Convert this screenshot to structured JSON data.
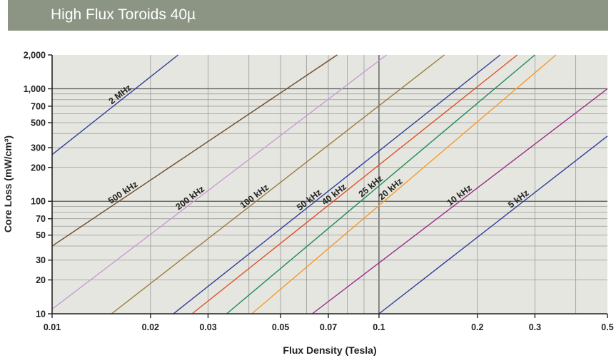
{
  "header": {
    "title": "High Flux Toroids 40µ"
  },
  "colors": {
    "banner": "#8c9484",
    "plot_bg": "#e6e6e0",
    "grid": "#999999"
  },
  "chart_data": {
    "type": "line",
    "title": "High Flux Toroids 40µ",
    "xlabel": "Flux Density (Tesla)",
    "ylabel": "Core Loss (mW/cm³)",
    "x_scale": "log",
    "y_scale": "log",
    "xlim": [
      0.01,
      0.5
    ],
    "ylim": [
      10,
      2000
    ],
    "x_ticks": [
      {
        "v": 0.01,
        "label": "0.01"
      },
      {
        "v": 0.02,
        "label": "0.02"
      },
      {
        "v": 0.03,
        "label": "0.03"
      },
      {
        "v": 0.05,
        "label": "0.05"
      },
      {
        "v": 0.07,
        "label": "0.07"
      },
      {
        "v": 0.1,
        "label": "0.1"
      },
      {
        "v": 0.2,
        "label": "0.2"
      },
      {
        "v": 0.3,
        "label": "0.3"
      },
      {
        "v": 0.5,
        "label": "0.5"
      }
    ],
    "y_ticks": [
      {
        "v": 10,
        "label": "10"
      },
      {
        "v": 20,
        "label": "20"
      },
      {
        "v": 30,
        "label": "30"
      },
      {
        "v": 50,
        "label": "50"
      },
      {
        "v": 70,
        "label": "70"
      },
      {
        "v": 100,
        "label": "100"
      },
      {
        "v": 200,
        "label": "200"
      },
      {
        "v": 300,
        "label": "300"
      },
      {
        "v": 500,
        "label": "500"
      },
      {
        "v": 700,
        "label": "700"
      },
      {
        "v": 1000,
        "label": "1,000"
      },
      {
        "v": 2000,
        "label": "2,000"
      }
    ],
    "x_grid": [
      0.02,
      0.03,
      0.04,
      0.05,
      0.06,
      0.07,
      0.08,
      0.09,
      0.1,
      0.2,
      0.3,
      0.4
    ],
    "y_grid": [
      20,
      30,
      40,
      50,
      60,
      70,
      80,
      90,
      100,
      200,
      300,
      400,
      500,
      600,
      700,
      800,
      900,
      1000
    ],
    "series": [
      {
        "name": "2 MHz",
        "color": "#2e3d9a",
        "x": [
          0.01,
          0.0243
        ],
        "y": [
          260,
          2000
        ],
        "label_at": 0.0165
      },
      {
        "name": "500 kHz",
        "color": "#6e4a2a",
        "x": [
          0.01,
          0.0745
        ],
        "y": [
          40,
          2000
        ],
        "label_at": 0.0168
      },
      {
        "name": "200 kHz",
        "color": "#c89ad8",
        "x": [
          0.01,
          0.1055
        ],
        "y": [
          11,
          2000
        ],
        "label_at": 0.027
      },
      {
        "name": "100 kHz",
        "color": "#9a7a3a",
        "x": [
          0.0152,
          0.1585
        ],
        "y": [
          10,
          2000
        ],
        "label_at": 0.0425
      },
      {
        "name": "50 kHz",
        "color": "#2e3d9a",
        "x": [
          0.0235,
          0.235
        ],
        "y": [
          10,
          2000
        ],
        "label_at": 0.0625
      },
      {
        "name": "40 kHz",
        "color": "#e0502a",
        "x": [
          0.0268,
          0.265
        ],
        "y": [
          10,
          2000
        ],
        "label_at": 0.0745
      },
      {
        "name": "25 kHz",
        "color": "#1e8a5a",
        "x": [
          0.0342,
          0.3
        ],
        "y": [
          10,
          2000
        ],
        "label_at": 0.0965
      },
      {
        "name": "20 kHz",
        "color": "#f59a2a",
        "x": [
          0.0408,
          0.348
        ],
        "y": [
          10,
          2000
        ],
        "label_at": 0.111
      },
      {
        "name": "10 kHz",
        "color": "#9a2a8a",
        "x": [
          0.0625,
          0.5
        ],
        "y": [
          10,
          1000
        ],
        "label_at": 0.18
      },
      {
        "name": "5 kHz",
        "color": "#2e3d9a",
        "x": [
          0.1,
          0.5
        ],
        "y": [
          10,
          380
        ],
        "label_at": 0.273
      }
    ]
  }
}
